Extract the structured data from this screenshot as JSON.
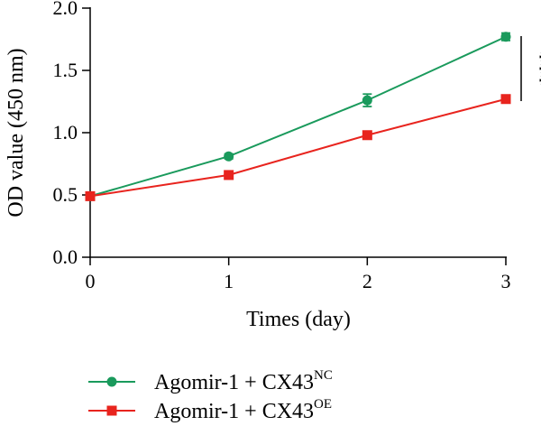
{
  "chart_data": {
    "type": "line",
    "xlabel": "Times (day)",
    "ylabel": "OD value (450 nm)",
    "x": [
      0,
      1,
      2,
      3
    ],
    "xlim": [
      0,
      3
    ],
    "ylim": [
      0,
      2.0
    ],
    "x_ticks": [
      "0",
      "1",
      "2",
      "3"
    ],
    "y_ticks": [
      "0.0",
      "0.5",
      "1.0",
      "1.5",
      "2.0"
    ],
    "grid": false,
    "legend_position": "bottom",
    "significance": "***",
    "series": [
      {
        "name_main": "Agomir-1 + CX43",
        "name_sup": "NC",
        "color": "#1a9a5c",
        "marker": "circle",
        "values": [
          0.49,
          0.81,
          1.26,
          1.77
        ],
        "errors": [
          0.02,
          0.02,
          0.05,
          0.03
        ]
      },
      {
        "name_main": "Agomir-1 + CX43",
        "name_sup": "OE",
        "color": "#e8241e",
        "marker": "square",
        "values": [
          0.49,
          0.66,
          0.98,
          1.27
        ],
        "errors": [
          0.02,
          0.03,
          0.03,
          0.03
        ]
      }
    ]
  }
}
